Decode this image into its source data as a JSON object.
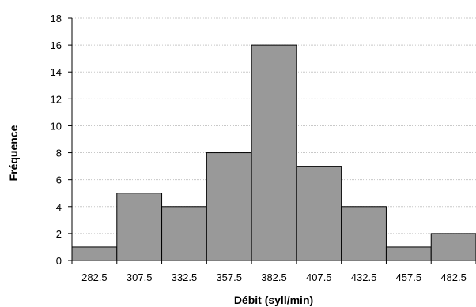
{
  "chart_data": {
    "type": "bar",
    "title": "",
    "xlabel": "Débit (syll/min)",
    "ylabel": "Fréquence",
    "categories": [
      "282.5",
      "307.5",
      "332.5",
      "357.5",
      "382.5",
      "407.5",
      "432.5",
      "457.5",
      "482.5"
    ],
    "values": [
      1,
      5,
      4,
      8,
      16,
      7,
      4,
      1,
      2
    ],
    "ylim": [
      0,
      18
    ],
    "yticks": [
      "0",
      "2",
      "4",
      "6",
      "8",
      "10",
      "12",
      "14",
      "16",
      "18"
    ],
    "grid": true,
    "legend": "none",
    "bar_color": "#999999",
    "bar_edge_color": "#000000"
  }
}
